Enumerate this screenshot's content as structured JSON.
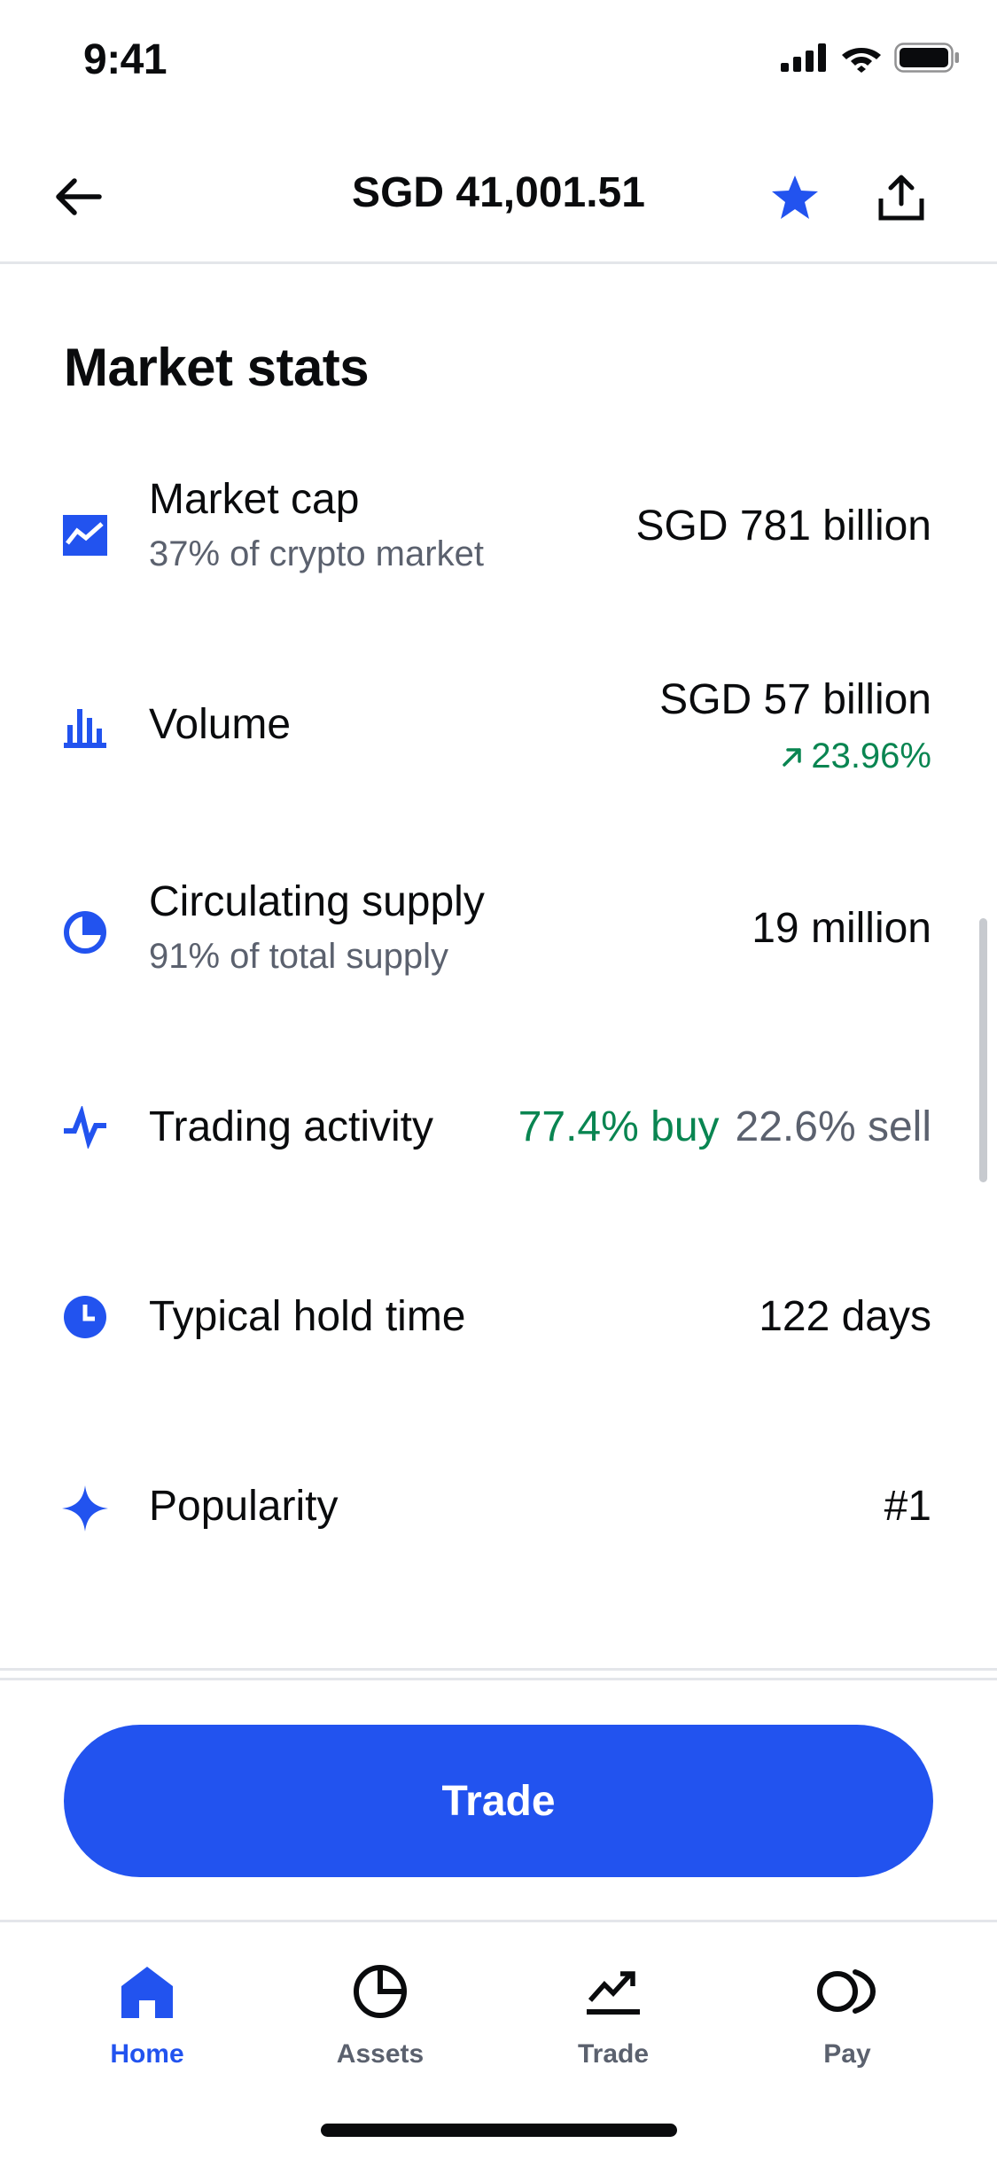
{
  "status_bar": {
    "time": "9:41"
  },
  "header": {
    "title": "SGD 41,001.51"
  },
  "section": {
    "title": "Market stats"
  },
  "stats": [
    {
      "label": "Market cap",
      "sub": "37% of crypto market",
      "value": "SGD 781 billion",
      "icon": "chart-area-icon"
    },
    {
      "label": "Volume",
      "value": "SGD 57 billion",
      "change": "23.96%",
      "icon": "bar-chart-icon"
    },
    {
      "label": "Circulating supply",
      "sub": "91% of total supply",
      "value": "19 million",
      "icon": "pie-chart-icon"
    },
    {
      "label": "Trading activity",
      "buy": "77.4% buy",
      "sell": "22.6% sell",
      "icon": "pulse-icon"
    },
    {
      "label": "Typical hold time",
      "value": "122 days",
      "icon": "clock-icon"
    },
    {
      "label": "Popularity",
      "value": "#1",
      "icon": "sparkle-icon"
    }
  ],
  "trade_button": {
    "label": "Trade"
  },
  "nav": [
    {
      "label": "Home",
      "icon": "home-icon",
      "active": true
    },
    {
      "label": "Assets",
      "icon": "assets-icon"
    },
    {
      "label": "Trade",
      "icon": "trade-icon"
    },
    {
      "label": "Pay",
      "icon": "pay-icon"
    }
  ],
  "colors": {
    "accent": "#2253ef",
    "positive": "#098551",
    "muted": "#5b616e",
    "text": "#0a0b0d"
  }
}
